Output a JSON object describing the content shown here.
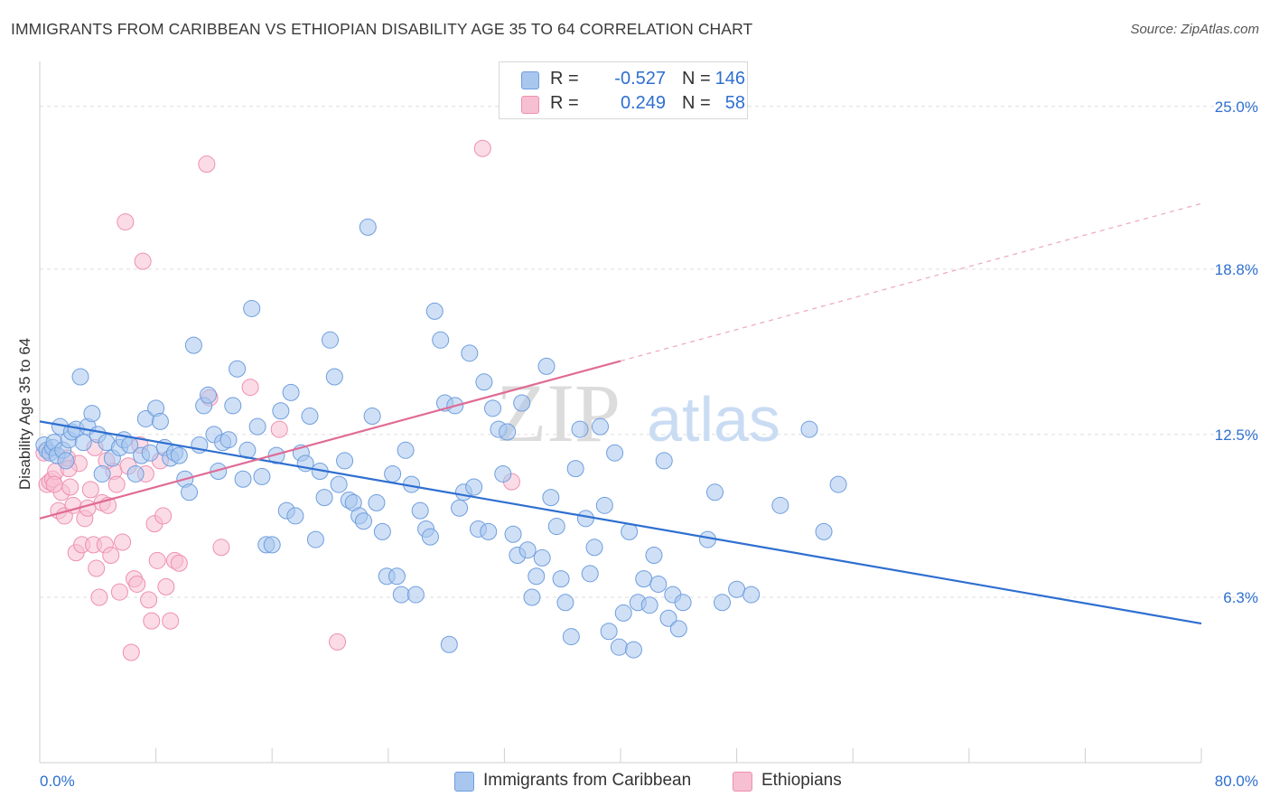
{
  "title": "IMMIGRANTS FROM CARIBBEAN VS ETHIOPIAN DISABILITY AGE 35 TO 64 CORRELATION CHART",
  "source": "Source: ZipAtlas.com",
  "watermark": {
    "zip": "ZIP",
    "atlas": "atlas"
  },
  "legend": {
    "rows": [
      {
        "r_label": "R =",
        "r_value": "-0.527",
        "n_label": "N =",
        "n_value": "146",
        "color": "#a8c6ee",
        "edge": "#6f9ede"
      },
      {
        "r_label": "R =",
        "r_value": "0.249",
        "n_label": "N =",
        "n_value": "58",
        "color": "#f7bfd2",
        "edge": "#ee8fb0"
      }
    ]
  },
  "chart_data": {
    "type": "scatter",
    "title": "IMMIGRANTS FROM CARIBBEAN VS ETHIOPIAN DISABILITY AGE 35 TO 64 CORRELATION CHART",
    "xlabel": "",
    "ylabel": "Disability Age 35 to 64",
    "xlim": [
      0,
      80
    ],
    "ylim": [
      0,
      26.3
    ],
    "x_tick_labels": [
      "0.0%",
      "80.0%"
    ],
    "y_ticks": [
      6.3,
      12.5,
      18.8,
      25.0
    ],
    "y_tick_labels": [
      "6.3%",
      "12.5%",
      "18.8%",
      "25.0%"
    ],
    "grid": true,
    "series": [
      {
        "name": "Immigrants from Caribbean",
        "color": "#a8c6ee",
        "edge": "#6f9ede",
        "trend": {
          "x": [
            0,
            80
          ],
          "y": [
            13.0,
            5.3
          ],
          "color": "#2e6fd0"
        },
        "points": [
          [
            0.3,
            12.1
          ],
          [
            0.5,
            11.9
          ],
          [
            0.7,
            11.8
          ],
          [
            0.9,
            12.0
          ],
          [
            1.0,
            12.2
          ],
          [
            1.2,
            11.7
          ],
          [
            1.4,
            12.8
          ],
          [
            1.6,
            11.9
          ],
          [
            1.8,
            11.5
          ],
          [
            2.0,
            12.3
          ],
          [
            2.2,
            12.6
          ],
          [
            2.5,
            12.7
          ],
          [
            2.8,
            14.7
          ],
          [
            3.0,
            12.2
          ],
          [
            3.3,
            12.8
          ],
          [
            3.6,
            13.3
          ],
          [
            4.0,
            12.5
          ],
          [
            4.3,
            11.0
          ],
          [
            4.6,
            12.2
          ],
          [
            5.0,
            11.6
          ],
          [
            5.5,
            12.0
          ],
          [
            5.8,
            12.3
          ],
          [
            6.2,
            12.1
          ],
          [
            6.6,
            11.0
          ],
          [
            7.0,
            11.7
          ],
          [
            7.3,
            13.1
          ],
          [
            7.6,
            11.8
          ],
          [
            8.0,
            13.5
          ],
          [
            8.3,
            13.0
          ],
          [
            8.6,
            12.0
          ],
          [
            9.0,
            11.6
          ],
          [
            9.3,
            11.8
          ],
          [
            9.6,
            11.7
          ],
          [
            10.0,
            10.8
          ],
          [
            10.3,
            10.3
          ],
          [
            10.6,
            15.9
          ],
          [
            11.0,
            12.1
          ],
          [
            11.3,
            13.6
          ],
          [
            11.6,
            14.0
          ],
          [
            12.0,
            12.5
          ],
          [
            12.3,
            11.1
          ],
          [
            12.6,
            12.2
          ],
          [
            13.0,
            12.3
          ],
          [
            13.3,
            13.6
          ],
          [
            13.6,
            15.0
          ],
          [
            14.0,
            10.8
          ],
          [
            14.3,
            11.9
          ],
          [
            14.6,
            17.3
          ],
          [
            15.0,
            12.8
          ],
          [
            15.3,
            10.9
          ],
          [
            15.6,
            8.3
          ],
          [
            16.0,
            8.3
          ],
          [
            16.3,
            11.7
          ],
          [
            16.6,
            13.4
          ],
          [
            17.0,
            9.6
          ],
          [
            17.3,
            14.1
          ],
          [
            17.6,
            9.4
          ],
          [
            18.0,
            11.8
          ],
          [
            18.3,
            11.4
          ],
          [
            18.6,
            13.2
          ],
          [
            19.0,
            8.5
          ],
          [
            19.3,
            11.1
          ],
          [
            19.6,
            10.1
          ],
          [
            20.0,
            16.1
          ],
          [
            20.3,
            14.7
          ],
          [
            20.6,
            10.6
          ],
          [
            21.0,
            11.5
          ],
          [
            21.3,
            10.0
          ],
          [
            21.6,
            9.9
          ],
          [
            22.0,
            9.4
          ],
          [
            22.3,
            9.2
          ],
          [
            22.6,
            20.4
          ],
          [
            22.9,
            13.2
          ],
          [
            23.2,
            9.9
          ],
          [
            23.6,
            8.8
          ],
          [
            23.9,
            7.1
          ],
          [
            24.3,
            11.0
          ],
          [
            24.6,
            7.1
          ],
          [
            24.9,
            6.4
          ],
          [
            25.2,
            11.9
          ],
          [
            25.6,
            10.6
          ],
          [
            25.9,
            6.4
          ],
          [
            26.2,
            9.6
          ],
          [
            26.6,
            8.9
          ],
          [
            26.9,
            8.6
          ],
          [
            27.2,
            17.2
          ],
          [
            27.6,
            16.1
          ],
          [
            27.9,
            13.7
          ],
          [
            28.2,
            4.5
          ],
          [
            28.6,
            13.6
          ],
          [
            28.9,
            9.7
          ],
          [
            29.2,
            10.3
          ],
          [
            29.6,
            15.6
          ],
          [
            29.9,
            10.5
          ],
          [
            30.2,
            8.9
          ],
          [
            30.6,
            14.5
          ],
          [
            30.9,
            8.8
          ],
          [
            31.2,
            13.5
          ],
          [
            31.6,
            12.7
          ],
          [
            31.9,
            11.0
          ],
          [
            32.2,
            12.6
          ],
          [
            32.6,
            8.7
          ],
          [
            32.9,
            7.9
          ],
          [
            33.2,
            13.7
          ],
          [
            33.6,
            8.1
          ],
          [
            33.9,
            6.3
          ],
          [
            34.2,
            7.1
          ],
          [
            34.6,
            7.8
          ],
          [
            34.9,
            15.1
          ],
          [
            35.2,
            10.1
          ],
          [
            35.6,
            9.0
          ],
          [
            35.9,
            7.0
          ],
          [
            36.2,
            6.1
          ],
          [
            36.6,
            4.8
          ],
          [
            36.9,
            11.2
          ],
          [
            37.2,
            12.7
          ],
          [
            37.6,
            9.3
          ],
          [
            37.9,
            7.2
          ],
          [
            38.2,
            8.2
          ],
          [
            38.6,
            12.8
          ],
          [
            38.9,
            9.8
          ],
          [
            39.2,
            5.0
          ],
          [
            39.6,
            11.8
          ],
          [
            39.9,
            4.4
          ],
          [
            40.2,
            5.7
          ],
          [
            40.6,
            8.8
          ],
          [
            40.9,
            4.3
          ],
          [
            41.2,
            6.1
          ],
          [
            41.6,
            7.0
          ],
          [
            42.0,
            6.0
          ],
          [
            42.3,
            7.9
          ],
          [
            42.6,
            6.8
          ],
          [
            43.0,
            11.5
          ],
          [
            43.3,
            5.5
          ],
          [
            43.6,
            6.4
          ],
          [
            44.0,
            5.1
          ],
          [
            44.3,
            6.1
          ],
          [
            46.0,
            8.5
          ],
          [
            46.5,
            10.3
          ],
          [
            47.0,
            6.1
          ],
          [
            48.0,
            6.6
          ],
          [
            49.0,
            6.4
          ],
          [
            51.0,
            9.8
          ],
          [
            53.0,
            12.7
          ],
          [
            54.0,
            8.8
          ],
          [
            55.0,
            10.6
          ]
        ]
      },
      {
        "name": "Ethiopians",
        "color": "#f7bfd2",
        "edge": "#ee8fb0",
        "trend": {
          "x": [
            0,
            40
          ],
          "y": [
            9.3,
            15.3
          ],
          "color": "#e06b95"
        },
        "trend_extension": {
          "x": [
            40,
            80
          ],
          "y": [
            15.3,
            21.3
          ]
        },
        "points": [
          [
            0.3,
            11.8
          ],
          [
            0.5,
            10.6
          ],
          [
            0.7,
            10.7
          ],
          [
            0.9,
            10.8
          ],
          [
            1.1,
            11.1
          ],
          [
            1.3,
            9.6
          ],
          [
            1.5,
            10.3
          ],
          [
            1.7,
            9.4
          ],
          [
            1.9,
            11.6
          ],
          [
            2.1,
            10.5
          ],
          [
            2.3,
            9.8
          ],
          [
            2.5,
            8.0
          ],
          [
            2.7,
            11.4
          ],
          [
            2.9,
            8.3
          ],
          [
            3.1,
            9.3
          ],
          [
            3.3,
            9.7
          ],
          [
            3.5,
            10.4
          ],
          [
            3.7,
            8.3
          ],
          [
            3.9,
            7.4
          ],
          [
            4.1,
            6.3
          ],
          [
            4.3,
            9.9
          ],
          [
            4.5,
            8.3
          ],
          [
            4.7,
            9.8
          ],
          [
            4.9,
            7.9
          ],
          [
            5.1,
            11.1
          ],
          [
            5.3,
            10.6
          ],
          [
            5.5,
            6.5
          ],
          [
            5.7,
            8.4
          ],
          [
            5.9,
            20.6
          ],
          [
            6.1,
            11.3
          ],
          [
            6.3,
            4.2
          ],
          [
            6.5,
            7.0
          ],
          [
            6.7,
            6.8
          ],
          [
            6.9,
            12.1
          ],
          [
            7.1,
            19.1
          ],
          [
            7.3,
            11.0
          ],
          [
            7.5,
            6.2
          ],
          [
            7.7,
            5.4
          ],
          [
            7.9,
            9.1
          ],
          [
            8.1,
            7.7
          ],
          [
            8.3,
            11.5
          ],
          [
            8.5,
            9.4
          ],
          [
            8.7,
            6.7
          ],
          [
            9.0,
            5.4
          ],
          [
            9.3,
            7.7
          ],
          [
            9.6,
            7.6
          ],
          [
            11.5,
            22.8
          ],
          [
            11.7,
            13.9
          ],
          [
            12.5,
            8.2
          ],
          [
            14.5,
            14.3
          ],
          [
            16.5,
            12.7
          ],
          [
            20.5,
            4.6
          ],
          [
            30.5,
            23.4
          ],
          [
            32.5,
            10.7
          ],
          [
            3.8,
            12.0
          ],
          [
            4.6,
            11.5
          ],
          [
            2.0,
            11.2
          ],
          [
            1.0,
            10.6
          ]
        ]
      }
    ]
  },
  "bottom_legend": [
    {
      "label": "Immigrants from Caribbean",
      "color": "#a8c6ee",
      "edge": "#6f9ede"
    },
    {
      "label": "Ethiopians",
      "color": "#f7bfd2",
      "edge": "#ee8fb0"
    }
  ]
}
